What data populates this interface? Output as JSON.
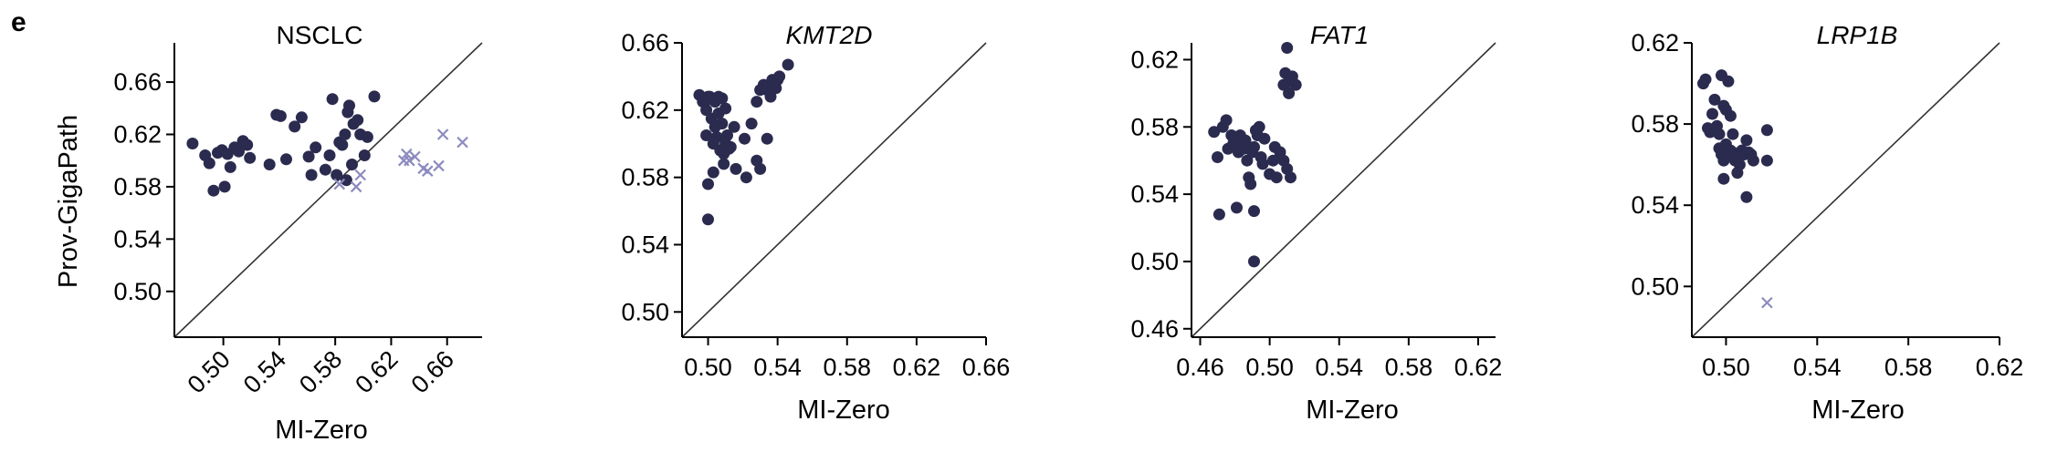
{
  "panel_label": "e",
  "marker_colors": {
    "dot": "#2b2b4f",
    "cross": "#8d8bbf"
  },
  "chart_data": [
    {
      "type": "scatter",
      "title": "NSCLC",
      "title_italic": false,
      "xlabel": "MI-Zero",
      "ylabel": "Prov-GigaPath",
      "xlim": [
        0.465,
        0.685
      ],
      "ylim": [
        0.465,
        0.69
      ],
      "xticks": [
        "0.50",
        "0.54",
        "0.58",
        "0.62",
        "0.66"
      ],
      "yticks": [
        "0.50",
        "0.54",
        "0.58",
        "0.62",
        "0.66"
      ],
      "xtick_rotation": -45,
      "diagonal": true,
      "series": [
        {
          "marker": "dot",
          "points": [
            [
              0.478,
              0.613
            ],
            [
              0.487,
              0.604
            ],
            [
              0.49,
              0.598
            ],
            [
              0.493,
              0.577
            ],
            [
              0.496,
              0.606
            ],
            [
              0.499,
              0.608
            ],
            [
              0.501,
              0.58
            ],
            [
              0.503,
              0.605
            ],
            [
              0.505,
              0.595
            ],
            [
              0.508,
              0.61
            ],
            [
              0.511,
              0.607
            ],
            [
              0.514,
              0.615
            ],
            [
              0.517,
              0.612
            ],
            [
              0.519,
              0.602
            ],
            [
              0.533,
              0.597
            ],
            [
              0.538,
              0.635
            ],
            [
              0.541,
              0.634
            ],
            [
              0.545,
              0.601
            ],
            [
              0.551,
              0.626
            ],
            [
              0.556,
              0.633
            ],
            [
              0.561,
              0.603
            ],
            [
              0.563,
              0.589
            ],
            [
              0.566,
              0.61
            ],
            [
              0.573,
              0.593
            ],
            [
              0.576,
              0.604
            ],
            [
              0.578,
              0.647
            ],
            [
              0.583,
              0.614
            ],
            [
              0.585,
              0.612
            ],
            [
              0.587,
              0.62
            ],
            [
              0.589,
              0.637
            ],
            [
              0.59,
              0.642
            ],
            [
              0.592,
              0.597
            ],
            [
              0.593,
              0.628
            ],
            [
              0.596,
              0.631
            ],
            [
              0.598,
              0.62
            ],
            [
              0.601,
              0.604
            ],
            [
              0.603,
              0.618
            ],
            [
              0.608,
              0.649
            ],
            [
              0.588,
              0.585
            ],
            [
              0.581,
              0.589
            ]
          ]
        },
        {
          "marker": "cross",
          "points": [
            [
              0.583,
              0.582
            ],
            [
              0.595,
              0.58
            ],
            [
              0.598,
              0.589
            ],
            [
              0.629,
              0.6
            ],
            [
              0.631,
              0.605
            ],
            [
              0.633,
              0.6
            ],
            [
              0.637,
              0.603
            ],
            [
              0.643,
              0.594
            ],
            [
              0.646,
              0.592
            ],
            [
              0.654,
              0.596
            ],
            [
              0.657,
              0.62
            ],
            [
              0.671,
              0.614
            ]
          ]
        }
      ]
    },
    {
      "type": "scatter",
      "title": "KMT2D",
      "title_italic": true,
      "xlabel": "MI-Zero",
      "ylabel": "",
      "xlim": [
        0.485,
        0.66
      ],
      "ylim": [
        0.485,
        0.66
      ],
      "xticks": [
        "0.50",
        "0.54",
        "0.58",
        "0.62",
        "0.66"
      ],
      "yticks": [
        "0.50",
        "0.54",
        "0.58",
        "0.62",
        "0.66"
      ],
      "xtick_rotation": 0,
      "diagonal": true,
      "series": [
        {
          "marker": "dot",
          "points": [
            [
              0.495,
              0.629
            ],
            [
              0.497,
              0.625
            ],
            [
              0.499,
              0.626
            ],
            [
              0.5,
              0.628
            ],
            [
              0.501,
              0.628
            ],
            [
              0.502,
              0.627
            ],
            [
              0.504,
              0.625
            ],
            [
              0.506,
              0.628
            ],
            [
              0.508,
              0.627
            ],
            [
              0.499,
              0.62
            ],
            [
              0.502,
              0.615
            ],
            [
              0.504,
              0.61
            ],
            [
              0.506,
              0.618
            ],
            [
              0.508,
              0.612
            ],
            [
              0.51,
              0.621
            ],
            [
              0.499,
              0.605
            ],
            [
              0.503,
              0.6
            ],
            [
              0.505,
              0.604
            ],
            [
              0.507,
              0.596
            ],
            [
              0.509,
              0.594
            ],
            [
              0.511,
              0.605
            ],
            [
              0.513,
              0.598
            ],
            [
              0.515,
              0.61
            ],
            [
              0.509,
              0.588
            ],
            [
              0.51,
              0.6
            ],
            [
              0.512,
              0.597
            ],
            [
              0.516,
              0.585
            ],
            [
              0.522,
              0.58
            ],
            [
              0.521,
              0.603
            ],
            [
              0.5,
              0.576
            ],
            [
              0.503,
              0.583
            ],
            [
              0.5,
              0.555
            ],
            [
              0.525,
              0.612
            ],
            [
              0.528,
              0.625
            ],
            [
              0.53,
              0.632
            ],
            [
              0.532,
              0.635
            ],
            [
              0.534,
              0.632
            ],
            [
              0.536,
              0.628
            ],
            [
              0.537,
              0.638
            ],
            [
              0.539,
              0.633
            ],
            [
              0.54,
              0.638
            ],
            [
              0.541,
              0.64
            ],
            [
              0.546,
              0.647
            ],
            [
              0.53,
              0.585
            ],
            [
              0.534,
              0.603
            ],
            [
              0.528,
              0.59
            ]
          ]
        }
      ]
    },
    {
      "type": "scatter",
      "title": "FAT1",
      "title_italic": true,
      "xlabel": "MI-Zero",
      "ylabel": "",
      "xlim": [
        0.455,
        0.63
      ],
      "ylim": [
        0.455,
        0.63
      ],
      "xticks": [
        "0.46",
        "0.50",
        "0.54",
        "0.58",
        "0.62"
      ],
      "yticks": [
        "0.46",
        "0.50",
        "0.54",
        "0.58",
        "0.62"
      ],
      "xtick_rotation": 0,
      "diagonal": true,
      "series": [
        {
          "marker": "dot",
          "points": [
            [
              0.468,
              0.577
            ],
            [
              0.47,
              0.562
            ],
            [
              0.471,
              0.528
            ],
            [
              0.473,
              0.58
            ],
            [
              0.475,
              0.584
            ],
            [
              0.476,
              0.567
            ],
            [
              0.478,
              0.575
            ],
            [
              0.479,
              0.57
            ],
            [
              0.48,
              0.573
            ],
            [
              0.481,
              0.532
            ],
            [
              0.482,
              0.565
            ],
            [
              0.483,
              0.575
            ],
            [
              0.484,
              0.571
            ],
            [
              0.485,
              0.567
            ],
            [
              0.486,
              0.572
            ],
            [
              0.487,
              0.56
            ],
            [
              0.488,
              0.55
            ],
            [
              0.489,
              0.546
            ],
            [
              0.49,
              0.565
            ],
            [
              0.491,
              0.568
            ],
            [
              0.492,
              0.578
            ],
            [
              0.493,
              0.575
            ],
            [
              0.494,
              0.58
            ],
            [
              0.495,
              0.562
            ],
            [
              0.496,
              0.558
            ],
            [
              0.497,
              0.573
            ],
            [
              0.491,
              0.5
            ],
            [
              0.491,
              0.53
            ],
            [
              0.5,
              0.552
            ],
            [
              0.502,
              0.56
            ],
            [
              0.503,
              0.568
            ],
            [
              0.504,
              0.55
            ],
            [
              0.506,
              0.565
            ],
            [
              0.508,
              0.56
            ],
            [
              0.51,
              0.555
            ],
            [
              0.512,
              0.55
            ],
            [
              0.508,
              0.605
            ],
            [
              0.509,
              0.612
            ],
            [
              0.511,
              0.607
            ],
            [
              0.513,
              0.61
            ],
            [
              0.515,
              0.605
            ],
            [
              0.51,
              0.627
            ],
            [
              0.511,
              0.6
            ]
          ]
        }
      ]
    },
    {
      "type": "scatter",
      "title": "LRP1B",
      "title_italic": true,
      "xlabel": "MI-Zero",
      "ylabel": "",
      "xlim": [
        0.485,
        0.62
      ],
      "ylim": [
        0.475,
        0.62
      ],
      "xticks": [
        "0.50",
        "0.54",
        "0.58",
        "0.62"
      ],
      "yticks": [
        "0.50",
        "0.54",
        "0.58",
        "0.62"
      ],
      "xtick_rotation": 0,
      "diagonal": true,
      "series": [
        {
          "marker": "dot",
          "points": [
            [
              0.49,
              0.6
            ],
            [
              0.491,
              0.602
            ],
            [
              0.492,
              0.578
            ],
            [
              0.493,
              0.576
            ],
            [
              0.494,
              0.585
            ],
            [
              0.495,
              0.592
            ],
            [
              0.496,
              0.579
            ],
            [
              0.497,
              0.575
            ],
            [
              0.498,
              0.604
            ],
            [
              0.499,
              0.589
            ],
            [
              0.5,
              0.587
            ],
            [
              0.501,
              0.601
            ],
            [
              0.502,
              0.584
            ],
            [
              0.503,
              0.575
            ],
            [
              0.497,
              0.568
            ],
            [
              0.498,
              0.565
            ],
            [
              0.499,
              0.562
            ],
            [
              0.5,
              0.57
            ],
            [
              0.501,
              0.565
            ],
            [
              0.502,
              0.567
            ],
            [
              0.503,
              0.566
            ],
            [
              0.504,
              0.562
            ],
            [
              0.505,
              0.565
            ],
            [
              0.506,
              0.56
            ],
            [
              0.507,
              0.567
            ],
            [
              0.508,
              0.565
            ],
            [
              0.509,
              0.572
            ],
            [
              0.51,
              0.566
            ],
            [
              0.511,
              0.565
            ],
            [
              0.512,
              0.562
            ],
            [
              0.499,
              0.553
            ],
            [
              0.505,
              0.556
            ],
            [
              0.509,
              0.544
            ],
            [
              0.518,
              0.577
            ],
            [
              0.518,
              0.562
            ]
          ]
        },
        {
          "marker": "cross",
          "points": [
            [
              0.518,
              0.492
            ]
          ]
        }
      ]
    }
  ]
}
